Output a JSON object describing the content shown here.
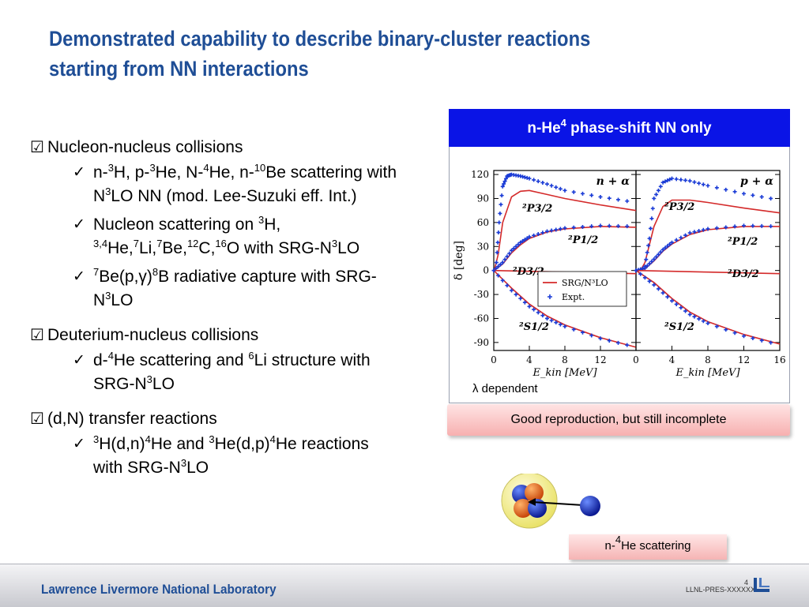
{
  "slide": {
    "title_line1": "Demonstrated capability to describe binary-cluster reactions",
    "title_line2": "starting from NN interactions"
  },
  "bullets": {
    "s1_head": "Nucleon-nucleus collisions",
    "s1_i1_a": "n-",
    "s1_i1_s1": "3",
    "s1_i1_b": "H, p-",
    "s1_i1_s2": "3",
    "s1_i1_c": "He, N-",
    "s1_i1_s3": "4",
    "s1_i1_d": "He, n-",
    "s1_i1_s4": "10",
    "s1_i1_e": "Be scattering with N",
    "s1_i1_s5": "3",
    "s1_i1_f": "LO NN (mod. Lee-Suzuki eff. Int.)",
    "s1_i2_a": "Nucleon scattering on ",
    "s1_i2_s1": "3",
    "s1_i2_b": "H, ",
    "s1_i2_s2": "3,4",
    "s1_i2_c": "He,",
    "s1_i2_s3": "7",
    "s1_i2_d": "Li,",
    "s1_i2_s4": "7",
    "s1_i2_e": "Be,",
    "s1_i2_s5": "12",
    "s1_i2_f": "C,",
    "s1_i2_s6": "16",
    "s1_i2_g": "O with SRG-N",
    "s1_i2_s7": "3",
    "s1_i2_h": "LO",
    "s1_i3_s1": "7",
    "s1_i3_a": "Be(p,γ)",
    "s1_i3_s2": "8",
    "s1_i3_b": "B radiative capture with SRG-N",
    "s1_i3_s3": "3",
    "s1_i3_c": "LO",
    "s2_head": "Deuterium-nucleus collisions",
    "s2_i1_a": "d-",
    "s2_i1_s1": "4",
    "s2_i1_b": "He scattering and ",
    "s2_i1_s2": "6",
    "s2_i1_c": "Li structure with SRG-N",
    "s2_i1_s3": "3",
    "s2_i1_d": "LO",
    "s3_head": "(d,N) transfer reactions",
    "s3_i1_s1": "3",
    "s3_i1_a": "H(d,n)",
    "s3_i1_s2": "4",
    "s3_i1_b": "He and ",
    "s3_i1_s3": "3",
    "s3_i1_c": "He(d,p)",
    "s3_i1_s4": "4",
    "s3_i1_d": "He reactions with SRG-N",
    "s3_i1_s5": "3",
    "s3_i1_e": "LO",
    "check_box": "☑",
    "tick": "✓"
  },
  "panel": {
    "header_a": "n-He",
    "header_sup": "4",
    "header_b": " phase-shift NN only",
    "lambda_symbol": "λ",
    "lambda_text": " dependent",
    "callout": "Good reproduction, but still incomplete",
    "scatter_a": "n-",
    "scatter_sup": "4",
    "scatter_b": "He scattering"
  },
  "chart_data": {
    "type": "line",
    "ylabel": "δ [deg]",
    "xlabel": "E_kin [MeV]",
    "y_ticks": [
      "120",
      "90",
      "60",
      "30",
      "0",
      "-30",
      "-60",
      "-90"
    ],
    "ylim": [
      -100,
      125
    ],
    "legend": [
      "SRG/N³LO",
      "Expt."
    ],
    "panels": [
      {
        "label": "n + α",
        "x_ticks": [
          "0",
          "4",
          "8",
          "12"
        ],
        "xlim": [
          0,
          16
        ],
        "series": [
          {
            "name": "²P3/2 SRG/N³LO",
            "x": [
              0.1,
              0.5,
              1,
              2,
              3,
              4,
              6,
              8,
              12,
              16
            ],
            "y": [
              2,
              20,
              60,
              92,
              99,
              100,
              95,
              90,
              82,
              75
            ]
          },
          {
            "name": "²P3/2 Expt.",
            "x": [
              0.3,
              0.6,
              1,
              1.5,
              2,
              3,
              4,
              6,
              8,
              12,
              16
            ],
            "y": [
              10,
              60,
              105,
              118,
              120,
              118,
              115,
              108,
              100,
              92,
              85
            ]
          },
          {
            "name": "²P1/2 SRG/N³LO",
            "x": [
              0,
              1,
              2,
              3,
              4,
              6,
              8,
              12,
              16
            ],
            "y": [
              0,
              8,
              22,
              32,
              40,
              48,
              52,
              55,
              54
            ]
          },
          {
            "name": "²P1/2 Expt.",
            "x": [
              0,
              1,
              2,
              3,
              4,
              6,
              8,
              12,
              16
            ],
            "y": [
              0,
              10,
              25,
              35,
              42,
              49,
              53,
              56,
              55
            ]
          },
          {
            "name": "²D3/2 SRG/N³LO",
            "x": [
              0,
              4,
              8,
              12,
              16
            ],
            "y": [
              0,
              -1,
              -2,
              -3,
              -4
            ]
          },
          {
            "name": "²S1/2 SRG/N³LO",
            "x": [
              0,
              2,
              4,
              6,
              8,
              12,
              16
            ],
            "y": [
              0,
              -22,
              -42,
              -57,
              -68,
              -84,
              -96
            ]
          },
          {
            "name": "²S1/2 Expt.",
            "x": [
              0,
              2,
              4,
              6,
              8,
              12,
              16
            ],
            "y": [
              0,
              -25,
              -45,
              -60,
              -70,
              -85,
              -96
            ]
          }
        ]
      },
      {
        "label": "p + α",
        "x_ticks": [
          "0",
          "4",
          "8",
          "12",
          "16"
        ],
        "xlim": [
          0,
          16
        ],
        "series": [
          {
            "name": "²P3/2 SRG/N³LO",
            "x": [
              0.5,
              1,
              2,
              3,
              4,
              6,
              8,
              12,
              16
            ],
            "y": [
              0,
              10,
              55,
              80,
              88,
              88,
              85,
              78,
              72
            ]
          },
          {
            "name": "²P3/2 Expt.",
            "x": [
              1,
              1.5,
              2,
              3,
              4,
              6,
              8,
              12,
              16
            ],
            "y": [
              5,
              40,
              90,
              110,
              115,
              112,
              106,
              96,
              88
            ]
          },
          {
            "name": "²P1/2 SRG/N³LO",
            "x": [
              0,
              1,
              2,
              3,
              4,
              6,
              8,
              12,
              16
            ],
            "y": [
              0,
              2,
              12,
              24,
              33,
              45,
              51,
              55,
              55
            ]
          },
          {
            "name": "²P1/2 Expt.",
            "x": [
              0,
              1,
              2,
              3,
              4,
              6,
              8,
              12,
              16
            ],
            "y": [
              0,
              3,
              14,
              26,
              35,
              47,
              52,
              56,
              55
            ]
          },
          {
            "name": "²D3/2 SRG/N³LO",
            "x": [
              0,
              4,
              8,
              12,
              16
            ],
            "y": [
              0,
              -1,
              -2,
              -3,
              -4
            ]
          },
          {
            "name": "²S1/2 SRG/N³LO",
            "x": [
              0,
              2,
              4,
              6,
              8,
              12,
              16
            ],
            "y": [
              0,
              -15,
              -35,
              -52,
              -64,
              -80,
              -92
            ]
          },
          {
            "name": "²S1/2 Expt.",
            "x": [
              0,
              2,
              4,
              6,
              8,
              12,
              16
            ],
            "y": [
              0,
              -18,
              -38,
              -55,
              -66,
              -82,
              -93
            ]
          }
        ]
      }
    ]
  },
  "footer": {
    "lab": "Lawrence Livermore National Laboratory",
    "code": "LLNL-PRES-XXXXXX",
    "page": "4"
  },
  "colors": {
    "title": "#1f4e96",
    "header": "#0a14e6",
    "curve": "#d42a2a",
    "expt": "#1a3bd6"
  }
}
